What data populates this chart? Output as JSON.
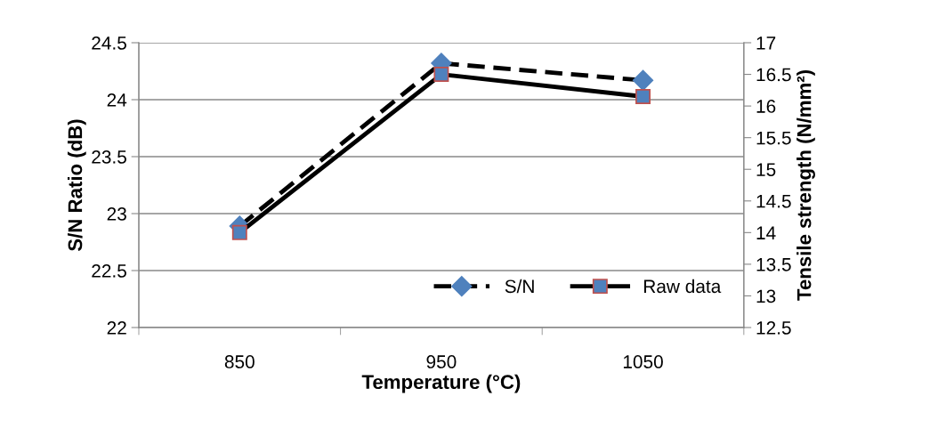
{
  "chart_data": {
    "type": "line",
    "xlabel": "Temperature (°C)",
    "ylabel": "S/N Ratio (dB)",
    "y2label": "Tensile strength (N/mm²)",
    "categories": [
      "850",
      "950",
      "1050"
    ],
    "series": [
      {
        "name": "S/N",
        "color": "#4f81bd",
        "values": [
          22.89,
          24.32,
          24.17
        ],
        "marker": "diamond",
        "line_style": "dashed"
      },
      {
        "name": "Raw data",
        "color": "#4f81bd",
        "values": [
          14.0,
          16.5,
          16.15
        ],
        "marker": "square",
        "line_style": "solid",
        "axis": "y2"
      }
    ],
    "ylim": [
      22,
      24.5
    ],
    "yticks": [
      22,
      22.5,
      23,
      23.5,
      24,
      24.5
    ],
    "y2lim": [
      12.5,
      17
    ],
    "y2ticks": [
      12.5,
      13,
      13.5,
      14,
      14.5,
      15,
      15.5,
      16,
      16.5,
      17
    ],
    "grid": "y",
    "legend": "bottom right"
  }
}
